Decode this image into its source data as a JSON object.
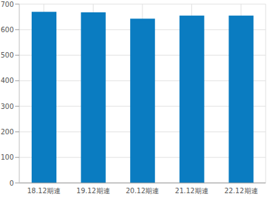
{
  "chart_data": {
    "type": "bar",
    "categories": [
      "18.12期連",
      "19.12期連",
      "20.12期連",
      "21.12期連",
      "22.12期連"
    ],
    "values": [
      670,
      668,
      643,
      655,
      655
    ],
    "color": "#0a7cc1",
    "ylim": [
      0,
      700
    ],
    "yticks": [
      0,
      100,
      200,
      300,
      400,
      500,
      600,
      700
    ],
    "grid": true
  }
}
